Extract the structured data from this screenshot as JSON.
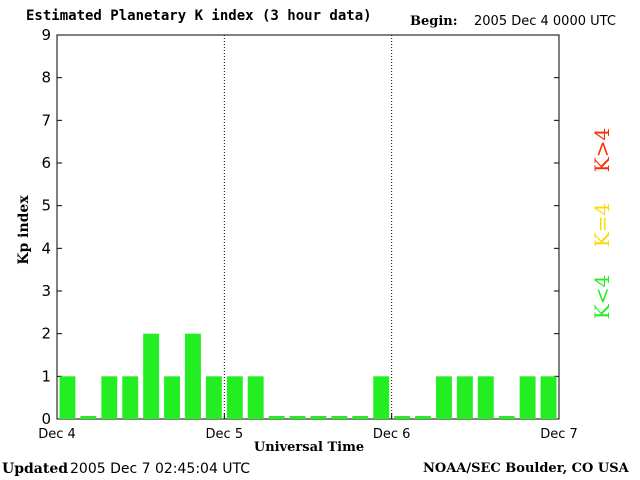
{
  "header": {
    "title": "Estimated Planetary K index (3 hour data)",
    "begin_label": "Begin:",
    "begin_value": "2005 Dec 4 0000 UTC"
  },
  "footer": {
    "updated_label": "Updated",
    "updated_value": "2005 Dec  7 02:45:04 UTC",
    "org": "NOAA/SEC Boulder, CO USA"
  },
  "legend": {
    "high": {
      "label": "K>4",
      "color": "#ff2a00"
    },
    "mid": {
      "label": "K=4",
      "color": "#ffd800"
    },
    "low": {
      "label": "K<4",
      "color": "#22ee22"
    }
  },
  "chart_data": {
    "type": "bar",
    "title": "Estimated Planetary K index (3 hour data)",
    "xlabel": "Universal Time",
    "ylabel": "Kp index",
    "ylim": [
      0,
      9
    ],
    "y_ticks": [
      "0",
      "1",
      "2",
      "3",
      "4",
      "5",
      "6",
      "7",
      "8",
      "9"
    ],
    "x_tick_labels": [
      "Dec 4",
      "Dec 5",
      "Dec 6",
      "Dec 7"
    ],
    "day_separators_dotted": true,
    "bar_color": "#22ee22",
    "series": [
      {
        "values": [
          1,
          0,
          1,
          1,
          2,
          1,
          2,
          1,
          1,
          1,
          0,
          0,
          0,
          0,
          0,
          1,
          0,
          0,
          1,
          1,
          1,
          0,
          1,
          1
        ]
      }
    ]
  }
}
